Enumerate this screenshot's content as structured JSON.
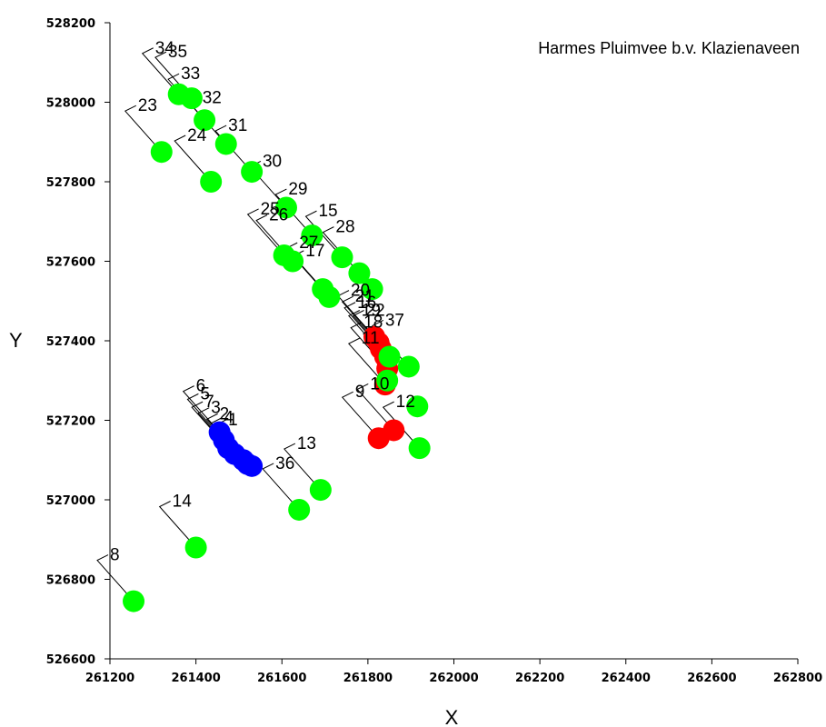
{
  "chart_data": {
    "type": "scatter",
    "title": "Harmes Pluimvee b.v. Klazienaveen",
    "xlabel": "X",
    "ylabel": "Y",
    "xlim": [
      261200,
      262800
    ],
    "ylim": [
      526600,
      528200
    ],
    "x_ticks": [
      261200,
      261400,
      261600,
      261800,
      262000,
      262200,
      262400,
      262600,
      262800
    ],
    "y_ticks": [
      526600,
      526800,
      527000,
      527200,
      527400,
      527600,
      527800,
      528000,
      528200
    ],
    "grid": false,
    "colors": {
      "green": "#00ff00",
      "red": "#ff0000",
      "blue": "#0000ff"
    },
    "points": [
      {
        "label": "1",
        "x": 261530,
        "y": 527085,
        "color": "blue"
      },
      {
        "label": "2",
        "x": 261510,
        "y": 527100,
        "color": "blue"
      },
      {
        "label": "3",
        "x": 261490,
        "y": 527115,
        "color": "blue"
      },
      {
        "label": "4",
        "x": 261520,
        "y": 527090,
        "color": "blue"
      },
      {
        "label": "5",
        "x": 261465,
        "y": 527150,
        "color": "blue"
      },
      {
        "label": "6",
        "x": 261455,
        "y": 527170,
        "color": "blue"
      },
      {
        "label": "7",
        "x": 261475,
        "y": 527130,
        "color": "blue"
      },
      {
        "label": "8",
        "x": 261255,
        "y": 526745,
        "color": "green"
      },
      {
        "label": "9",
        "x": 261825,
        "y": 527155,
        "color": "red"
      },
      {
        "label": "10",
        "x": 261860,
        "y": 527175,
        "color": "red"
      },
      {
        "label": "11",
        "x": 261840,
        "y": 527290,
        "color": "red"
      },
      {
        "label": "12",
        "x": 261920,
        "y": 527130,
        "color": "green"
      },
      {
        "label": "13",
        "x": 261690,
        "y": 527025,
        "color": "green"
      },
      {
        "label": "14",
        "x": 261400,
        "y": 526880,
        "color": "green"
      },
      {
        "label": "15",
        "x": 261740,
        "y": 527610,
        "color": "green"
      },
      {
        "label": "16",
        "x": 261830,
        "y": 527380,
        "color": "red"
      },
      {
        "label": "17",
        "x": 261710,
        "y": 527510,
        "color": "green"
      },
      {
        "label": "18",
        "x": 261845,
        "y": 527330,
        "color": "red"
      },
      {
        "label": "19",
        "x": 261840,
        "y": 527360,
        "color": "red"
      },
      {
        "label": "20",
        "x": 261815,
        "y": 527410,
        "color": "red"
      },
      {
        "label": "21",
        "x": 261825,
        "y": 527395,
        "color": "red"
      },
      {
        "label": "22",
        "x": 261850,
        "y": 527360,
        "color": "green"
      },
      {
        "label": "23",
        "x": 261320,
        "y": 527875,
        "color": "green"
      },
      {
        "label": "24",
        "x": 261435,
        "y": 527800,
        "color": "green"
      },
      {
        "label": "25",
        "x": 261605,
        "y": 527615,
        "color": "green"
      },
      {
        "label": "26",
        "x": 261625,
        "y": 527600,
        "color": "green"
      },
      {
        "label": "27",
        "x": 261695,
        "y": 527530,
        "color": "green"
      },
      {
        "label": "28",
        "x": 261780,
        "y": 527570,
        "color": "green"
      },
      {
        "label": "29",
        "x": 261670,
        "y": 527665,
        "color": "green"
      },
      {
        "label": "30",
        "x": 261610,
        "y": 527735,
        "color": "green"
      },
      {
        "label": "31",
        "x": 261530,
        "y": 527825,
        "color": "green"
      },
      {
        "label": "32",
        "x": 261470,
        "y": 527895,
        "color": "green"
      },
      {
        "label": "33",
        "x": 261420,
        "y": 527955,
        "color": "green"
      },
      {
        "label": "34",
        "x": 261360,
        "y": 528020,
        "color": "green"
      },
      {
        "label": "35",
        "x": 261390,
        "y": 528010,
        "color": "green"
      },
      {
        "label": "36",
        "x": 261640,
        "y": 526975,
        "color": "green"
      },
      {
        "label": "37",
        "x": 261895,
        "y": 527335,
        "color": "green"
      },
      {
        "label": "",
        "x": 261810,
        "y": 527530,
        "color": "green"
      },
      {
        "label": "",
        "x": 261915,
        "y": 527235,
        "color": "green"
      },
      {
        "label": "",
        "x": 261845,
        "y": 527300,
        "color": "green"
      }
    ]
  }
}
